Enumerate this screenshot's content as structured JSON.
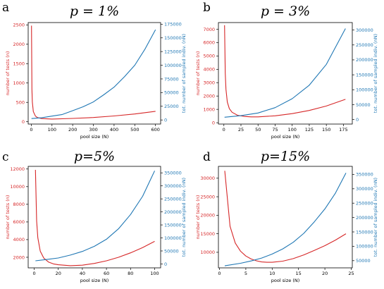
{
  "colors": {
    "n_series": "#d62728",
    "nN_series": "#1f77b4",
    "frame": "#000000"
  },
  "chart_data": [
    {
      "panel": "a",
      "type": "line",
      "title": "p = 1%",
      "xlabel": "pool size (N)",
      "ylabel_left": "number of tests (n)",
      "ylabel_right": "tot. number of sampled indiv. (nN)",
      "xlim": [
        -15,
        625
      ],
      "ylim_left": [
        -60,
        2560
      ],
      "ylim_right": [
        -7500,
        178000
      ],
      "xticks": [
        0,
        100,
        200,
        300,
        400,
        500,
        600
      ],
      "yticks_left": [
        0,
        500,
        1000,
        1500,
        2000,
        2500
      ],
      "yticks_right": [
        0,
        25000,
        50000,
        75000,
        100000,
        125000,
        150000,
        175000
      ],
      "grid": false,
      "series": [
        {
          "name": "number of tests (n)",
          "axis": "left",
          "x": [
            1,
            3,
            5,
            10,
            20,
            30,
            50,
            100,
            200,
            300,
            400,
            500,
            600
          ],
          "y": [
            2480,
            840,
            510,
            262,
            146,
            108,
            82,
            70,
            85,
            110,
            150,
            200,
            270
          ]
        },
        {
          "name": "tot. number of sampled indiv. (nN)",
          "axis": "right",
          "x": [
            1,
            50,
            100,
            150,
            200,
            250,
            300,
            350,
            400,
            450,
            500,
            550,
            600
          ],
          "y": [
            2500,
            4000,
            7000,
            10000,
            17000,
            24000,
            33000,
            46000,
            60000,
            79000,
            100000,
            130000,
            165000
          ]
        }
      ]
    },
    {
      "panel": "b",
      "type": "line",
      "title": "p = 3%",
      "xlabel": "pool size (N)",
      "ylabel_left": "number of tests (n)",
      "ylabel_right": "tot. number of sampled indiv. (nN)",
      "xlim": [
        -8,
        188
      ],
      "ylim_left": [
        -100,
        7500
      ],
      "ylim_right": [
        -15000,
        325000
      ],
      "xticks": [
        0,
        25,
        50,
        75,
        100,
        125,
        150,
        175
      ],
      "yticks_left": [
        0,
        1000,
        2000,
        3000,
        4000,
        5000,
        6000,
        7000
      ],
      "yticks_right": [
        0,
        50000,
        100000,
        150000,
        200000,
        250000,
        300000
      ],
      "grid": false,
      "series": [
        {
          "name": "number of tests (n)",
          "axis": "left",
          "x": [
            1,
            2,
            3,
            5,
            8,
            12,
            20,
            30,
            40,
            50,
            75,
            100,
            125,
            150,
            178
          ],
          "y": [
            7300,
            3700,
            2500,
            1550,
            1050,
            780,
            560,
            470,
            440,
            440,
            520,
            680,
            920,
            1250,
            1750
          ]
        },
        {
          "name": "tot. number of sampled indiv. (nN)",
          "axis": "right",
          "x": [
            1,
            25,
            50,
            75,
            100,
            125,
            150,
            178
          ],
          "y": [
            8000,
            13000,
            22000,
            40000,
            70000,
            115000,
            185000,
            305000
          ]
        }
      ]
    },
    {
      "panel": "c",
      "type": "line",
      "title": "p=5%",
      "xlabel": "pool size (N)",
      "ylabel_left": "number of tests (n)",
      "ylabel_right": "tot. number of sampled indiv. (nN)",
      "xlim": [
        -5,
        105
      ],
      "ylim_left": [
        800,
        12300
      ],
      "ylim_right": [
        -15000,
        375000
      ],
      "xticks": [
        0,
        20,
        40,
        60,
        80,
        100
      ],
      "yticks_left": [
        2000,
        4000,
        6000,
        8000,
        10000,
        12000
      ],
      "yticks_right": [
        0,
        50000,
        100000,
        150000,
        200000,
        250000,
        300000,
        350000
      ],
      "grid": false,
      "series": [
        {
          "name": "number of tests (n)",
          "axis": "left",
          "x": [
            1,
            2,
            3,
            5,
            8,
            12,
            16,
            20,
            30,
            40,
            50,
            60,
            70,
            80,
            90,
            100
          ],
          "y": [
            11900,
            6100,
            4200,
            2700,
            1900,
            1450,
            1250,
            1150,
            1050,
            1100,
            1300,
            1600,
            2000,
            2500,
            3100,
            3800
          ]
        },
        {
          "name": "tot. number of sampled indiv. (nN)",
          "axis": "right",
          "x": [
            1,
            10,
            20,
            30,
            40,
            50,
            60,
            70,
            80,
            90,
            100
          ],
          "y": [
            12000,
            17000,
            23000,
            34000,
            48000,
            68000,
            95000,
            135000,
            190000,
            260000,
            358000
          ]
        }
      ]
    },
    {
      "panel": "d",
      "type": "line",
      "title": "p=15%",
      "xlabel": "pool size (N)",
      "ylabel_left": "number of tests (n)",
      "ylabel_right": "tot. number of sampled indiv. (nN)",
      "xlim": [
        -0.2,
        25.2
      ],
      "ylim_left": [
        5800,
        33200
      ],
      "ylim_right": [
        25000,
        378000
      ],
      "xticks": [
        0,
        5,
        10,
        15,
        20,
        25
      ],
      "yticks_left": [
        10000,
        15000,
        20000,
        25000,
        30000
      ],
      "yticks_right": [
        50000,
        100000,
        150000,
        200000,
        250000,
        300000,
        350000
      ],
      "grid": false,
      "series": [
        {
          "name": "number of tests (n)",
          "axis": "left",
          "x": [
            1,
            2,
            3,
            4,
            5,
            6,
            7,
            8,
            9,
            10,
            12,
            14,
            16,
            18,
            20,
            22,
            24
          ],
          "y": [
            32000,
            17000,
            12500,
            10300,
            9000,
            8200,
            7700,
            7400,
            7300,
            7300,
            7600,
            8300,
            9300,
            10500,
            11800,
            13300,
            15000
          ]
        },
        {
          "name": "tot. number of sampled indiv. (nN)",
          "axis": "right",
          "x": [
            1,
            4,
            6,
            8,
            10,
            12,
            14,
            16,
            18,
            20,
            22,
            24
          ],
          "y": [
            32000,
            41000,
            49000,
            59000,
            73000,
            91000,
            114000,
            145000,
            185000,
            230000,
            285000,
            355000
          ]
        }
      ]
    }
  ]
}
